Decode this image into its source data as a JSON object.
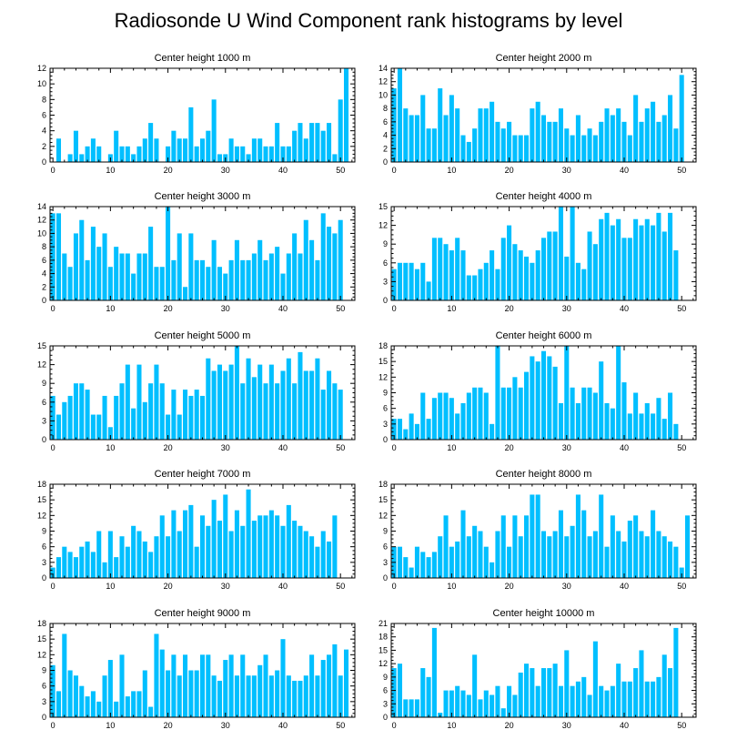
{
  "title": "Radiosonde U Wind Component rank histograms by level",
  "colors": {
    "bar": "#00BFFF",
    "axis": "#000000"
  },
  "chart_data": [
    {
      "type": "bar",
      "title": "Center height 1000 m",
      "x": [
        0,
        1,
        2,
        3,
        4,
        5,
        6,
        7,
        8,
        9,
        10,
        11,
        12,
        13,
        14,
        15,
        16,
        17,
        18,
        19,
        20,
        21,
        22,
        23,
        24,
        25,
        26,
        27,
        28,
        29,
        30,
        31,
        32,
        33,
        34,
        35,
        36,
        37,
        38,
        39,
        40,
        41,
        42,
        43,
        44,
        45,
        46,
        47,
        48,
        49,
        50,
        51
      ],
      "values": [
        0,
        3,
        0,
        1,
        4,
        1,
        2,
        3,
        2,
        0,
        1,
        4,
        2,
        2,
        1,
        2,
        3,
        5,
        3,
        0,
        2,
        4,
        3,
        3,
        7,
        2,
        3,
        4,
        8,
        1,
        1,
        3,
        2,
        2,
        1,
        3,
        3,
        2,
        2,
        5,
        2,
        2,
        4,
        5,
        3,
        5,
        5,
        4,
        5,
        1,
        8,
        12
      ],
      "ylim": [
        0,
        12
      ],
      "yticks": [
        0,
        2,
        4,
        6,
        8,
        10,
        12
      ],
      "xticks": [
        0,
        10,
        20,
        30,
        40,
        50
      ]
    },
    {
      "type": "bar",
      "title": "Center height 2000 m",
      "x": [
        0,
        1,
        2,
        3,
        4,
        5,
        6,
        7,
        8,
        9,
        10,
        11,
        12,
        13,
        14,
        15,
        16,
        17,
        18,
        19,
        20,
        21,
        22,
        23,
        24,
        25,
        26,
        27,
        28,
        29,
        30,
        31,
        32,
        33,
        34,
        35,
        36,
        37,
        38,
        39,
        40,
        41,
        42,
        43,
        44,
        45,
        46,
        47,
        48,
        49,
        50,
        51
      ],
      "values": [
        11,
        14,
        8,
        7,
        7,
        10,
        5,
        5,
        11,
        7,
        10,
        8,
        4,
        3,
        5,
        8,
        8,
        9,
        6,
        5,
        6,
        4,
        4,
        4,
        8,
        9,
        7,
        6,
        6,
        8,
        5,
        4,
        7,
        4,
        5,
        4,
        6,
        8,
        7,
        8,
        6,
        4,
        10,
        6,
        8,
        9,
        6,
        7,
        10,
        5,
        13,
        0
      ],
      "ylim": [
        0,
        14
      ],
      "yticks": [
        0,
        2,
        4,
        6,
        8,
        10,
        12,
        14
      ],
      "xticks": [
        0,
        10,
        20,
        30,
        40,
        50
      ]
    },
    {
      "type": "bar",
      "title": "Center height 3000 m",
      "x": [
        0,
        1,
        2,
        3,
        4,
        5,
        6,
        7,
        8,
        9,
        10,
        11,
        12,
        13,
        14,
        15,
        16,
        17,
        18,
        19,
        20,
        21,
        22,
        23,
        24,
        25,
        26,
        27,
        28,
        29,
        30,
        31,
        32,
        33,
        34,
        35,
        36,
        37,
        38,
        39,
        40,
        41,
        42,
        43,
        44,
        45,
        46,
        47,
        48,
        49,
        50,
        51
      ],
      "values": [
        13,
        13,
        7,
        5,
        10,
        12,
        6,
        11,
        8,
        10,
        5,
        8,
        7,
        7,
        4,
        7,
        7,
        11,
        5,
        5,
        14,
        6,
        10,
        2,
        10,
        6,
        6,
        5,
        9,
        5,
        4,
        6,
        9,
        6,
        6,
        7,
        9,
        6,
        7,
        8,
        4,
        7,
        10,
        7,
        12,
        9,
        6,
        13,
        11,
        10,
        12,
        0
      ],
      "ylim": [
        0,
        14
      ],
      "yticks": [
        0,
        2,
        4,
        6,
        8,
        10,
        12,
        14
      ],
      "xticks": [
        0,
        10,
        20,
        30,
        40,
        50
      ]
    },
    {
      "type": "bar",
      "title": "Center height 4000 m",
      "x": [
        0,
        1,
        2,
        3,
        4,
        5,
        6,
        7,
        8,
        9,
        10,
        11,
        12,
        13,
        14,
        15,
        16,
        17,
        18,
        19,
        20,
        21,
        22,
        23,
        24,
        25,
        26,
        27,
        28,
        29,
        30,
        31,
        32,
        33,
        34,
        35,
        36,
        37,
        38,
        39,
        40,
        41,
        42,
        43,
        44,
        45,
        46,
        47,
        48,
        49,
        50,
        51
      ],
      "values": [
        5,
        6,
        6,
        6,
        5,
        6,
        3,
        10,
        10,
        9,
        8,
        10,
        8,
        4,
        4,
        5,
        6,
        8,
        5,
        10,
        12,
        9,
        8,
        7,
        6,
        8,
        10,
        11,
        11,
        15,
        7,
        15,
        6,
        5,
        11,
        9,
        13,
        14,
        12,
        13,
        10,
        10,
        13,
        12,
        13,
        12,
        14,
        11,
        14,
        8,
        0,
        0
      ],
      "ylim": [
        0,
        15
      ],
      "yticks": [
        0,
        3,
        6,
        9,
        12,
        15
      ],
      "xticks": [
        0,
        10,
        20,
        30,
        40,
        50
      ]
    },
    {
      "type": "bar",
      "title": "Center height 5000 m",
      "x": [
        0,
        1,
        2,
        3,
        4,
        5,
        6,
        7,
        8,
        9,
        10,
        11,
        12,
        13,
        14,
        15,
        16,
        17,
        18,
        19,
        20,
        21,
        22,
        23,
        24,
        25,
        26,
        27,
        28,
        29,
        30,
        31,
        32,
        33,
        34,
        35,
        36,
        37,
        38,
        39,
        40,
        41,
        42,
        43,
        44,
        45,
        46,
        47,
        48,
        49,
        50,
        51
      ],
      "values": [
        7,
        4,
        6,
        7,
        9,
        9,
        8,
        4,
        4,
        7,
        2,
        7,
        9,
        12,
        5,
        12,
        6,
        9,
        12,
        9,
        4,
        8,
        4,
        8,
        7,
        8,
        7,
        13,
        11,
        12,
        11,
        12,
        15,
        9,
        13,
        10,
        12,
        9,
        12,
        9,
        11,
        13,
        9,
        14,
        11,
        11,
        13,
        8,
        11,
        9,
        8,
        0
      ],
      "ylim": [
        0,
        15
      ],
      "yticks": [
        0,
        3,
        6,
        9,
        12,
        15
      ],
      "xticks": [
        0,
        10,
        20,
        30,
        40,
        50
      ]
    },
    {
      "type": "bar",
      "title": "Center height 6000 m",
      "x": [
        0,
        1,
        2,
        3,
        4,
        5,
        6,
        7,
        8,
        9,
        10,
        11,
        12,
        13,
        14,
        15,
        16,
        17,
        18,
        19,
        20,
        21,
        22,
        23,
        24,
        25,
        26,
        27,
        28,
        29,
        30,
        31,
        32,
        33,
        34,
        35,
        36,
        37,
        38,
        39,
        40,
        41,
        42,
        43,
        44,
        45,
        46,
        47,
        48,
        49,
        50,
        51
      ],
      "values": [
        4,
        4,
        2,
        5,
        3,
        9,
        4,
        8,
        9,
        9,
        8,
        5,
        7,
        9,
        10,
        10,
        9,
        3,
        18,
        10,
        10,
        12,
        10,
        13,
        16,
        15,
        17,
        16,
        14,
        7,
        18,
        10,
        7,
        10,
        10,
        9,
        15,
        7,
        6,
        18,
        11,
        5,
        9,
        5,
        7,
        5,
        8,
        4,
        9,
        3,
        0,
        0
      ],
      "ylim": [
        0,
        18
      ],
      "yticks": [
        0,
        3,
        6,
        9,
        12,
        15,
        18
      ],
      "xticks": [
        0,
        10,
        20,
        30,
        40,
        50
      ]
    },
    {
      "type": "bar",
      "title": "Center height 7000 m",
      "x": [
        0,
        1,
        2,
        3,
        4,
        5,
        6,
        7,
        8,
        9,
        10,
        11,
        12,
        13,
        14,
        15,
        16,
        17,
        18,
        19,
        20,
        21,
        22,
        23,
        24,
        25,
        26,
        27,
        28,
        29,
        30,
        31,
        32,
        33,
        34,
        35,
        36,
        37,
        38,
        39,
        40,
        41,
        42,
        43,
        44,
        45,
        46,
        47,
        48,
        49,
        50,
        51
      ],
      "values": [
        2,
        4,
        6,
        5,
        4,
        6,
        7,
        5,
        9,
        3,
        9,
        4,
        8,
        6,
        10,
        9,
        7,
        5,
        8,
        12,
        8,
        13,
        9,
        13,
        14,
        6,
        12,
        10,
        15,
        11,
        16,
        9,
        13,
        10,
        17,
        11,
        12,
        12,
        13,
        12,
        10,
        14,
        11,
        10,
        9,
        8,
        6,
        9,
        7,
        12,
        0,
        0
      ],
      "ylim": [
        0,
        18
      ],
      "yticks": [
        0,
        3,
        6,
        9,
        12,
        15,
        18
      ],
      "xticks": [
        0,
        10,
        20,
        30,
        40,
        50
      ]
    },
    {
      "type": "bar",
      "title": "Center height 8000 m",
      "x": [
        0,
        1,
        2,
        3,
        4,
        5,
        6,
        7,
        8,
        9,
        10,
        11,
        12,
        13,
        14,
        15,
        16,
        17,
        18,
        19,
        20,
        21,
        22,
        23,
        24,
        25,
        26,
        27,
        28,
        29,
        30,
        31,
        32,
        33,
        34,
        35,
        36,
        37,
        38,
        39,
        40,
        41,
        42,
        43,
        44,
        45,
        46,
        47,
        48,
        49,
        50,
        51
      ],
      "values": [
        6,
        6,
        4,
        2,
        6,
        5,
        4,
        5,
        8,
        12,
        6,
        7,
        13,
        8,
        10,
        9,
        6,
        3,
        9,
        12,
        6,
        12,
        8,
        12,
        16,
        16,
        9,
        8,
        9,
        13,
        8,
        10,
        16,
        13,
        8,
        9,
        16,
        6,
        12,
        9,
        7,
        11,
        12,
        9,
        8,
        13,
        9,
        8,
        7,
        6,
        2,
        12
      ],
      "ylim": [
        0,
        18
      ],
      "yticks": [
        0,
        3,
        6,
        9,
        12,
        15,
        18
      ],
      "xticks": [
        0,
        10,
        20,
        30,
        40,
        50
      ]
    },
    {
      "type": "bar",
      "title": "Center height 9000 m",
      "x": [
        0,
        1,
        2,
        3,
        4,
        5,
        6,
        7,
        8,
        9,
        10,
        11,
        12,
        13,
        14,
        15,
        16,
        17,
        18,
        19,
        20,
        21,
        22,
        23,
        24,
        25,
        26,
        27,
        28,
        29,
        30,
        31,
        32,
        33,
        34,
        35,
        36,
        37,
        38,
        39,
        40,
        41,
        42,
        43,
        44,
        45,
        46,
        47,
        48,
        49,
        50,
        51
      ],
      "values": [
        10,
        5,
        16,
        9,
        8,
        6,
        4,
        5,
        3,
        8,
        11,
        3,
        12,
        4,
        5,
        5,
        9,
        2,
        16,
        13,
        9,
        12,
        8,
        12,
        9,
        9,
        12,
        12,
        8,
        7,
        11,
        12,
        8,
        12,
        8,
        8,
        10,
        12,
        8,
        9,
        15,
        8,
        7,
        7,
        8,
        12,
        8,
        11,
        12,
        14,
        8,
        13
      ],
      "ylim": [
        0,
        18
      ],
      "yticks": [
        0,
        3,
        6,
        9,
        12,
        15,
        18
      ],
      "xticks": [
        0,
        10,
        20,
        30,
        40,
        50
      ]
    },
    {
      "type": "bar",
      "title": "Center height 10000 m",
      "x": [
        0,
        1,
        2,
        3,
        4,
        5,
        6,
        7,
        8,
        9,
        10,
        11,
        12,
        13,
        14,
        15,
        16,
        17,
        18,
        19,
        20,
        21,
        22,
        23,
        24,
        25,
        26,
        27,
        28,
        29,
        30,
        31,
        32,
        33,
        34,
        35,
        36,
        37,
        38,
        39,
        40,
        41,
        42,
        43,
        44,
        45,
        46,
        47,
        48,
        49,
        50,
        51
      ],
      "values": [
        11,
        12,
        4,
        4,
        4,
        11,
        9,
        20,
        1,
        6,
        6,
        7,
        6,
        5,
        14,
        4,
        6,
        5,
        7,
        2,
        7,
        5,
        10,
        12,
        11,
        7,
        11,
        11,
        12,
        7,
        15,
        7,
        8,
        9,
        5,
        17,
        7,
        6,
        7,
        12,
        8,
        8,
        11,
        15,
        8,
        8,
        9,
        14,
        11,
        20,
        0,
        0
      ],
      "ylim": [
        0,
        21
      ],
      "yticks": [
        0,
        3,
        6,
        9,
        12,
        15,
        18,
        21
      ],
      "xticks": [
        0,
        10,
        20,
        30,
        40,
        50
      ]
    }
  ]
}
